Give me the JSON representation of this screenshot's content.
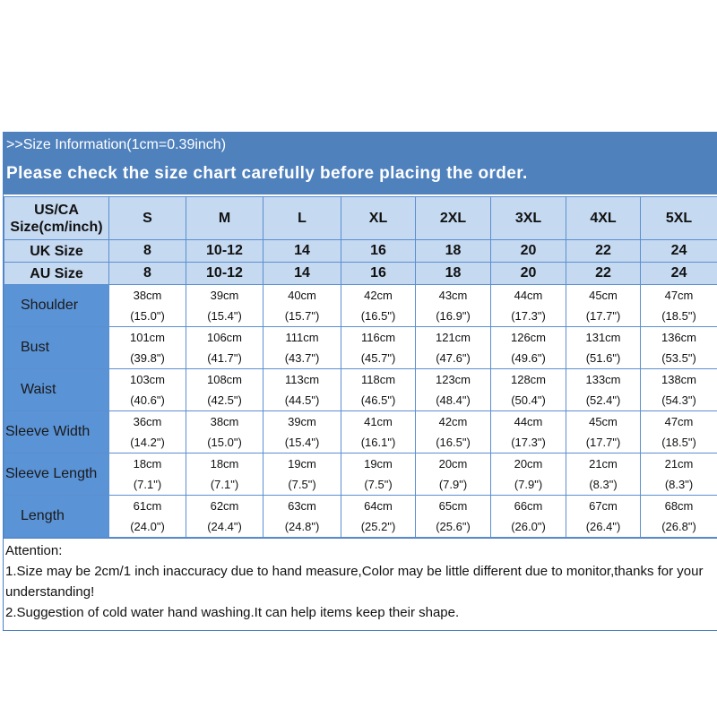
{
  "header": {
    "info": ">>Size Information(1cm=0.39inch)",
    "notice": "Please check the size chart carefully before placing the order."
  },
  "size_rows": [
    {
      "label": "US/CA Size(cm/inch)",
      "values": [
        "S",
        "M",
        "L",
        "XL",
        "2XL",
        "3XL",
        "4XL",
        "5XL"
      ]
    },
    {
      "label": "UK Size",
      "values": [
        "8",
        "10-12",
        "14",
        "16",
        "18",
        "20",
        "22",
        "24"
      ]
    },
    {
      "label": "AU Size",
      "values": [
        "8",
        "10-12",
        "14",
        "16",
        "18",
        "20",
        "22",
        "24"
      ]
    }
  ],
  "measure_rows": [
    {
      "label": "Shoulder",
      "cm": [
        "38cm",
        "39cm",
        "40cm",
        "42cm",
        "43cm",
        "44cm",
        "45cm",
        "47cm"
      ],
      "inch": [
        "(15.0\")",
        "(15.4\")",
        "(15.7\")",
        "(16.5\")",
        "(16.9\")",
        "(17.3\")",
        "(17.7\")",
        "(18.5\")"
      ]
    },
    {
      "label": "Bust",
      "cm": [
        "101cm",
        "106cm",
        "111cm",
        "116cm",
        "121cm",
        "126cm",
        "131cm",
        "136cm"
      ],
      "inch": [
        "(39.8\")",
        "(41.7\")",
        "(43.7\")",
        "(45.7\")",
        "(47.6\")",
        "(49.6\")",
        "(51.6\")",
        "(53.5\")"
      ]
    },
    {
      "label": "Waist",
      "cm": [
        "103cm",
        "108cm",
        "113cm",
        "118cm",
        "123cm",
        "128cm",
        "133cm",
        "138cm"
      ],
      "inch": [
        "(40.6\")",
        "(42.5\")",
        "(44.5\")",
        "(46.5\")",
        "(48.4\")",
        "(50.4\")",
        "(52.4\")",
        "(54.3\")"
      ]
    },
    {
      "label": "Sleeve Width",
      "cm": [
        "36cm",
        "38cm",
        "39cm",
        "41cm",
        "42cm",
        "44cm",
        "45cm",
        "47cm"
      ],
      "inch": [
        "(14.2\")",
        "(15.0\")",
        "(15.4\")",
        "(16.1\")",
        "(16.5\")",
        "(17.3\")",
        "(17.7\")",
        "(18.5\")"
      ]
    },
    {
      "label": "Sleeve Length",
      "cm": [
        "18cm",
        "18cm",
        "19cm",
        "19cm",
        "20cm",
        "20cm",
        "21cm",
        "21cm"
      ],
      "inch": [
        "(7.1\")",
        "(7.1\")",
        "(7.5\")",
        "(7.5\")",
        "(7.9\")",
        "(7.9\")",
        "(8.3\")",
        "(8.3\")"
      ]
    },
    {
      "label": "Length",
      "cm": [
        "61cm",
        "62cm",
        "63cm",
        "64cm",
        "65cm",
        "66cm",
        "67cm",
        "68cm"
      ],
      "inch": [
        "(24.0\")",
        "(24.4\")",
        "(24.8\")",
        "(25.2\")",
        "(25.6\")",
        "(26.0\")",
        "(26.4\")",
        "(26.8\")"
      ]
    }
  ],
  "attention": {
    "title": "Attention:",
    "notes": [
      "1.Size may be 2cm/1 inch inaccuracy due to hand measure,Color may be little different due to monitor,thanks for your understanding!",
      "2.Suggestion of cold water hand washing.It can help items keep their shape."
    ]
  },
  "colors": {
    "banner": "#4f81bd",
    "header_cells": "#c5d9f1",
    "label_column": "#5a93d6"
  }
}
